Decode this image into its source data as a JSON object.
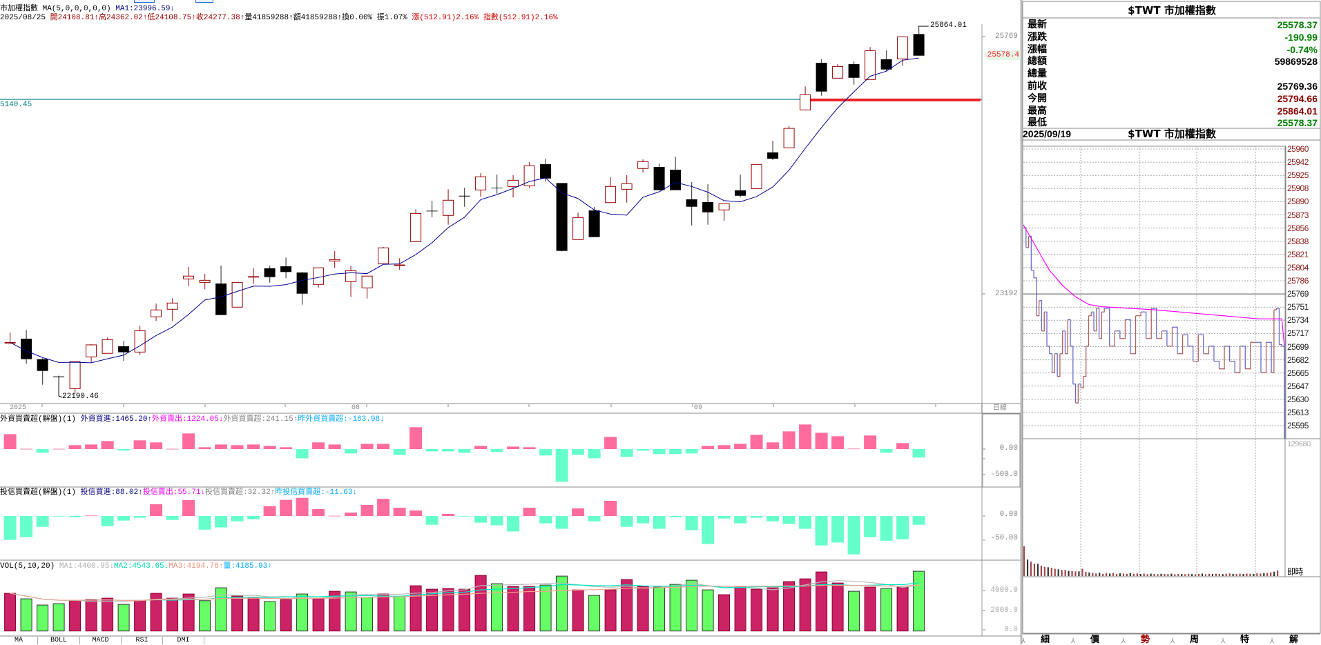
{
  "header": {
    "line1": {
      "name": "市加權指數",
      "ma_params": "MA(5,0,0,0,0,0)",
      "ma1": "MA1:23996.59↓"
    },
    "line2": {
      "date": "2025/08/25",
      "open": "開24108.81↑",
      "high": "高24362.02↑",
      "low": "低24108.75↑",
      "close": "收24277.38↑",
      "volume": "量41859288↑",
      "amount": "額41859288↑",
      "turnover": "換0.00%",
      "amplitude": "振1.07%",
      "change": "漲(512.91)2.16%",
      "index_change": "指數(512.91)2.16%"
    }
  },
  "main_chart": {
    "axis_labels": {
      "prev_close": "25769",
      "last": "25578.4",
      "mid": "23192"
    },
    "ref_line": {
      "value": 25140.45,
      "label": "5140.45"
    },
    "drawn_line": {
      "value": 25135
    },
    "high_label": "25864.01",
    "low_label": "22190.46",
    "x_labels": {
      "year": "2025",
      "aug": "08",
      "sep": "09",
      "period": "日線"
    }
  },
  "chart_data": {
    "type": "candlestick",
    "ma_period": 5,
    "ohlc": [
      [
        22699,
        22805,
        22692,
        22705
      ],
      [
        22743,
        22831,
        22492,
        22538
      ],
      [
        22538,
        22547,
        22282,
        22420
      ],
      [
        22365,
        22372,
        22350,
        22358
      ],
      [
        22243,
        22513,
        22190.46,
        22513
      ],
      [
        22561,
        22688,
        22501,
        22681
      ],
      [
        22596,
        22755,
        22596,
        22734
      ],
      [
        22667,
        22722,
        22520,
        22607
      ],
      [
        22609,
        22872,
        22579,
        22824
      ],
      [
        22962,
        23095,
        22920,
        23031
      ],
      [
        23038,
        23148,
        22920,
        23100
      ],
      [
        23342,
        23462,
        23270,
        23370
      ],
      [
        23307,
        23392,
        23238,
        23328
      ],
      [
        23296,
        23475,
        22980,
        22980
      ],
      [
        23059,
        23307,
        23059,
        23307
      ],
      [
        23360,
        23448,
        23291,
        23365
      ],
      [
        23448,
        23475,
        23305,
        23360
      ],
      [
        23468,
        23556,
        23349,
        23411
      ],
      [
        23406,
        23411,
        23084,
        23194
      ],
      [
        23287,
        23453,
        23256,
        23453
      ],
      [
        23522,
        23620,
        23450,
        23535
      ],
      [
        23314,
        23473,
        23160,
        23425
      ],
      [
        23252,
        23370,
        23146,
        23370
      ],
      [
        23494,
        23662,
        23494,
        23653
      ],
      [
        23478,
        23549,
        23434,
        23482
      ],
      [
        23715,
        24040,
        23715,
        23998
      ],
      [
        24025,
        24125,
        23959,
        24019
      ],
      [
        23978,
        24240,
        23885,
        24130
      ],
      [
        24175,
        24256,
        24065,
        24168
      ],
      [
        24233,
        24401,
        24166,
        24365
      ],
      [
        24255,
        24387,
        24196,
        24249
      ],
      [
        24268,
        24381,
        24159,
        24330
      ],
      [
        24275,
        24512,
        24251,
        24475
      ],
      [
        24491,
        24546,
        24320,
        24348
      ],
      [
        24302,
        24302,
        23618,
        23623
      ],
      [
        23736,
        24007,
        23736,
        23957
      ],
      [
        24028,
        24063,
        23761,
        23761
      ],
      [
        24106,
        24360,
        24106,
        24268
      ],
      [
        24240,
        24381,
        24106,
        24296
      ],
      [
        24448,
        24539,
        24408,
        24517
      ],
      [
        24464,
        24498,
        24231,
        24231
      ],
      [
        24436,
        24567,
        24231,
        24231
      ],
      [
        24139,
        24311,
        23878,
        24065
      ],
      [
        24111,
        24291,
        23885,
        24009
      ],
      [
        24033,
        24095,
        23922,
        24095
      ],
      [
        24229,
        24387,
        24159,
        24175
      ],
      [
        24247,
        24489,
        24247,
        24489
      ],
      [
        24609,
        24726,
        24533,
        24546
      ],
      [
        24655,
        24876,
        24655,
        24850
      ],
      [
        25035,
        25270,
        25035,
        25187
      ],
      [
        25507,
        25542,
        25177,
        25219
      ],
      [
        25353,
        25493,
        25353,
        25470
      ],
      [
        25493,
        25519,
        25288,
        25357
      ],
      [
        25339,
        25664,
        25339,
        25629
      ],
      [
        25542,
        25631,
        25422,
        25440
      ],
      [
        25546,
        25767,
        25477,
        25767
      ],
      [
        25794.66,
        25864.01,
        25578.37,
        25578.37
      ]
    ],
    "foreign_net": [
      290,
      5,
      -72,
      5,
      76,
      89,
      156,
      -27,
      170,
      130,
      5,
      304,
      36,
      89,
      76,
      89,
      63,
      36,
      -179,
      130,
      89,
      -85,
      103,
      103,
      -112,
      425,
      -45,
      -45,
      -72,
      63,
      -58,
      49,
      36,
      -125,
      -635,
      -112,
      -179,
      237,
      -152,
      -31,
      -98,
      -98,
      -85,
      63,
      76,
      103,
      277,
      130,
      344,
      478,
      317,
      250,
      9,
      264,
      -72,
      116,
      -165
    ],
    "trust_net": [
      -54,
      -48,
      -24.5,
      -1,
      -2.6,
      1,
      -23,
      -10.4,
      -4,
      26.6,
      -8.9,
      36,
      -31,
      -26,
      -12,
      -7.3,
      22.4,
      36.5,
      41,
      15.6,
      0.5,
      7.8,
      25,
      39,
      18.8,
      12.5,
      -19.8,
      4.7,
      -1,
      -15,
      -21,
      -35,
      18.8,
      -16.7,
      -29,
      17.2,
      -12,
      34.4,
      -24.5,
      -16.7,
      -29,
      -2.6,
      -32,
      -63.5,
      -5.7,
      -16.7,
      -4,
      -12,
      -18,
      -29,
      -66.7,
      -60,
      -87,
      -48,
      -56,
      -52.6,
      -19.8
    ],
    "volume": [
      3723,
      3178,
      2565,
      2701,
      3019,
      3110,
      3246,
      2633,
      3019,
      3723,
      3246,
      3655,
      2996,
      4268,
      3450,
      3269,
      2906,
      3110,
      3655,
      3246,
      3927,
      3859,
      3314,
      3655,
      3405,
      4472,
      4131,
      4200,
      4131,
      5493,
      4676,
      4404,
      4404,
      4540,
      5425,
      4063,
      3519,
      4063,
      5085,
      4404,
      4336,
      4608,
      5017,
      4063,
      3587,
      4336,
      4131,
      4268,
      4881,
      5153,
      5834,
      4744,
      3927,
      4336,
      4200,
      4336,
      5902
    ],
    "volume_up": [
      1,
      0,
      0,
      0,
      1,
      1,
      1,
      0,
      1,
      1,
      1,
      1,
      0,
      0,
      1,
      1,
      0,
      1,
      0,
      1,
      1,
      0,
      0,
      1,
      0,
      1,
      1,
      1,
      1,
      1,
      0,
      1,
      1,
      0,
      0,
      1,
      0,
      1,
      1,
      1,
      0,
      0,
      0,
      0,
      1,
      1,
      1,
      1,
      1,
      1,
      1,
      1,
      0,
      1,
      0,
      1,
      0
    ]
  },
  "foreign_pane": {
    "title": "外資買賣超(解盤)(1)",
    "buy": "外資買進:1465.20↑",
    "sell": "外資賣出:1224.05↓",
    "net": "外資買賣超:241.15↑",
    "prev_net": "昨外資買賣超:-163.98↓",
    "axis": [
      "0.00",
      "-500.0"
    ]
  },
  "trust_pane": {
    "title": "投信買賣超(解盤)(1)",
    "buy": "投信買進:88.02↑",
    "sell": "投信賣出:55.71↓",
    "net": "投信買賣超:32.32↑",
    "prev_net": "昨投信買賣超:-11.63↓",
    "axis": [
      "0.00",
      "-50.00"
    ]
  },
  "vol_pane": {
    "title": "VOL(5,10,20)",
    "ma1": "MA1:4400.95↓",
    "ma2": "MA2:4543.65↓",
    "ma3": "MA3:4194.76↑",
    "vol": "量:4185.93↑",
    "axis": [
      "4000.0",
      "2000.0",
      "0.0"
    ]
  },
  "indicator_tabs": [
    "MA",
    "BOLL",
    "MACD",
    "RSI",
    "DMI"
  ],
  "quote_panel": {
    "title": "$TWT 市加權指數",
    "rows": [
      {
        "label": "最新",
        "value": "25578.37",
        "color": "#008000"
      },
      {
        "label": "漲跌",
        "value": "-190.99",
        "color": "#008000"
      },
      {
        "label": "漲幅",
        "value": "-0.74%",
        "color": "#008000"
      },
      {
        "label": "總額",
        "value": "59869528",
        "color": "#000000"
      },
      {
        "label": "總量",
        "value": "",
        "color": "#000000"
      },
      {
        "label": "前收",
        "value": "25769.36",
        "color": "#000000"
      },
      {
        "label": "今開",
        "value": "25794.66",
        "color": "#8b0000"
      },
      {
        "label": "最高",
        "value": "25864.01",
        "color": "#8b0000"
      },
      {
        "label": "最低",
        "value": "25578.37",
        "color": "#008000"
      }
    ]
  },
  "intraday": {
    "date": "2025/09/19",
    "title": "$TWT 市加權指數",
    "prev_close": 25769,
    "price_labels": [
      "25960",
      "25942",
      "25925",
      "25908",
      "25890",
      "25873",
      "25856",
      "25838",
      "25821",
      "25804",
      "25786",
      "25769",
      "25751",
      "25734",
      "25717",
      "25699",
      "25682",
      "25665",
      "25647",
      "25630",
      "25613",
      "25595"
    ],
    "price": [
      [
        0,
        25856
      ],
      [
        0.01,
        25830
      ],
      [
        0.02,
        25845
      ],
      [
        0.03,
        25800
      ],
      [
        0.04,
        25790
      ],
      [
        0.05,
        25740
      ],
      [
        0.06,
        25760
      ],
      [
        0.07,
        25720
      ],
      [
        0.08,
        25745
      ],
      [
        0.09,
        25700
      ],
      [
        0.1,
        25690
      ],
      [
        0.11,
        25665
      ],
      [
        0.12,
        25690
      ],
      [
        0.13,
        25660
      ],
      [
        0.14,
        25690
      ],
      [
        0.15,
        25720
      ],
      [
        0.16,
        25690
      ],
      [
        0.17,
        25735
      ],
      [
        0.18,
        25700
      ],
      [
        0.19,
        25650
      ],
      [
        0.2,
        25625
      ],
      [
        0.21,
        25650
      ],
      [
        0.22,
        25645
      ],
      [
        0.23,
        25660
      ],
      [
        0.24,
        25700
      ],
      [
        0.25,
        25740
      ],
      [
        0.26,
        25745
      ],
      [
        0.27,
        25720
      ],
      [
        0.28,
        25750
      ],
      [
        0.29,
        25710
      ],
      [
        0.3,
        25745
      ],
      [
        0.31,
        25750
      ],
      [
        0.33,
        25700
      ],
      [
        0.35,
        25720
      ],
      [
        0.37,
        25710
      ],
      [
        0.39,
        25735
      ],
      [
        0.41,
        25690
      ],
      [
        0.43,
        25740
      ],
      [
        0.45,
        25745
      ],
      [
        0.47,
        25710
      ],
      [
        0.49,
        25750
      ],
      [
        0.51,
        25710
      ],
      [
        0.53,
        25720
      ],
      [
        0.55,
        25700
      ],
      [
        0.57,
        25725
      ],
      [
        0.59,
        25690
      ],
      [
        0.61,
        25715
      ],
      [
        0.63,
        25700
      ],
      [
        0.65,
        25680
      ],
      [
        0.67,
        25715
      ],
      [
        0.69,
        25690
      ],
      [
        0.71,
        25700
      ],
      [
        0.73,
        25680
      ],
      [
        0.75,
        25670
      ],
      [
        0.77,
        25700
      ],
      [
        0.79,
        25680
      ],
      [
        0.81,
        25665
      ],
      [
        0.83,
        25700
      ],
      [
        0.85,
        25670
      ],
      [
        0.87,
        25705
      ],
      [
        0.89,
        25705
      ],
      [
        0.91,
        25665
      ],
      [
        0.93,
        25705
      ],
      [
        0.95,
        25665
      ],
      [
        0.96,
        25748
      ],
      [
        0.97,
        25750
      ],
      [
        0.98,
        25702
      ],
      [
        0.99,
        25700
      ],
      [
        1.0,
        25578
      ]
    ],
    "average": [
      [
        0,
        25860
      ],
      [
        0.05,
        25830
      ],
      [
        0.1,
        25800
      ],
      [
        0.15,
        25780
      ],
      [
        0.2,
        25765
      ],
      [
        0.25,
        25755
      ],
      [
        0.3,
        25752
      ],
      [
        0.5,
        25748
      ],
      [
        0.7,
        25742
      ],
      [
        0.9,
        25736
      ],
      [
        0.99,
        25736
      ],
      [
        1.0,
        25700
      ]
    ],
    "volume_max": "129680",
    "volume_max_value": 129680,
    "volume": [
      29000,
      16000,
      14000,
      12000,
      12000,
      10000,
      9000,
      8500,
      8000,
      7000,
      6500,
      6000,
      6000,
      5000,
      5000,
      4500,
      4500,
      7000,
      4000,
      3500,
      3000,
      2500,
      3200,
      2200,
      2800,
      2400,
      3000,
      2000,
      2600,
      2300,
      2100,
      2700,
      2200,
      2500,
      2000,
      2400,
      1900,
      2300,
      2100,
      1800,
      2200,
      2000,
      1900,
      2300,
      1700,
      2100,
      2000,
      1800,
      2200,
      1900,
      1700,
      2000,
      2400,
      1800,
      2100,
      1900,
      2300,
      2000,
      1800,
      2200,
      2500,
      2100,
      1900,
      2300,
      2000,
      2400,
      2200,
      2100,
      2600,
      2400,
      2800,
      3000,
      3600,
      4200,
      5500
    ],
    "realtime_label": "即時"
  },
  "right_tabs": [
    "細",
    "價",
    "勢",
    "周",
    "特",
    "解"
  ]
}
